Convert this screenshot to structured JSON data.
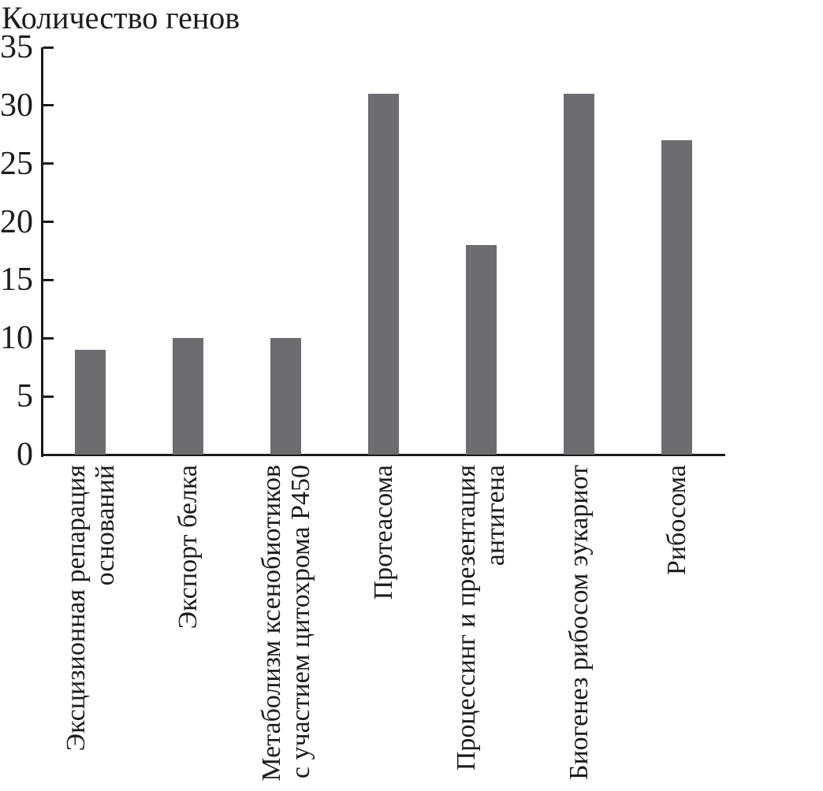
{
  "chart": {
    "title": "Количество генов"
  },
  "chart_data": {
    "type": "bar",
    "title": "Количество генов",
    "categories": [
      "Эксцизионная репарация\nоснований",
      "Экспорт белка",
      "Метаболизм ксенобиотиков\nс участием цитохрома Р450",
      "Протеасома",
      "Процессинг и презентация\nантигена",
      "Биогенез рибосом эукариот",
      "Рибосома"
    ],
    "values": [
      9,
      10,
      10,
      31,
      18,
      31,
      27
    ],
    "xlabel": "",
    "ylabel": "Количество генов",
    "ylim": [
      0,
      35
    ],
    "yticks": [
      0,
      5,
      10,
      15,
      20,
      25,
      30,
      35
    ],
    "grid": false,
    "legend": "none",
    "bar_color": "#6b6d70",
    "axis_color": "#1a1a1a",
    "xticklabel_rotation": 90
  }
}
